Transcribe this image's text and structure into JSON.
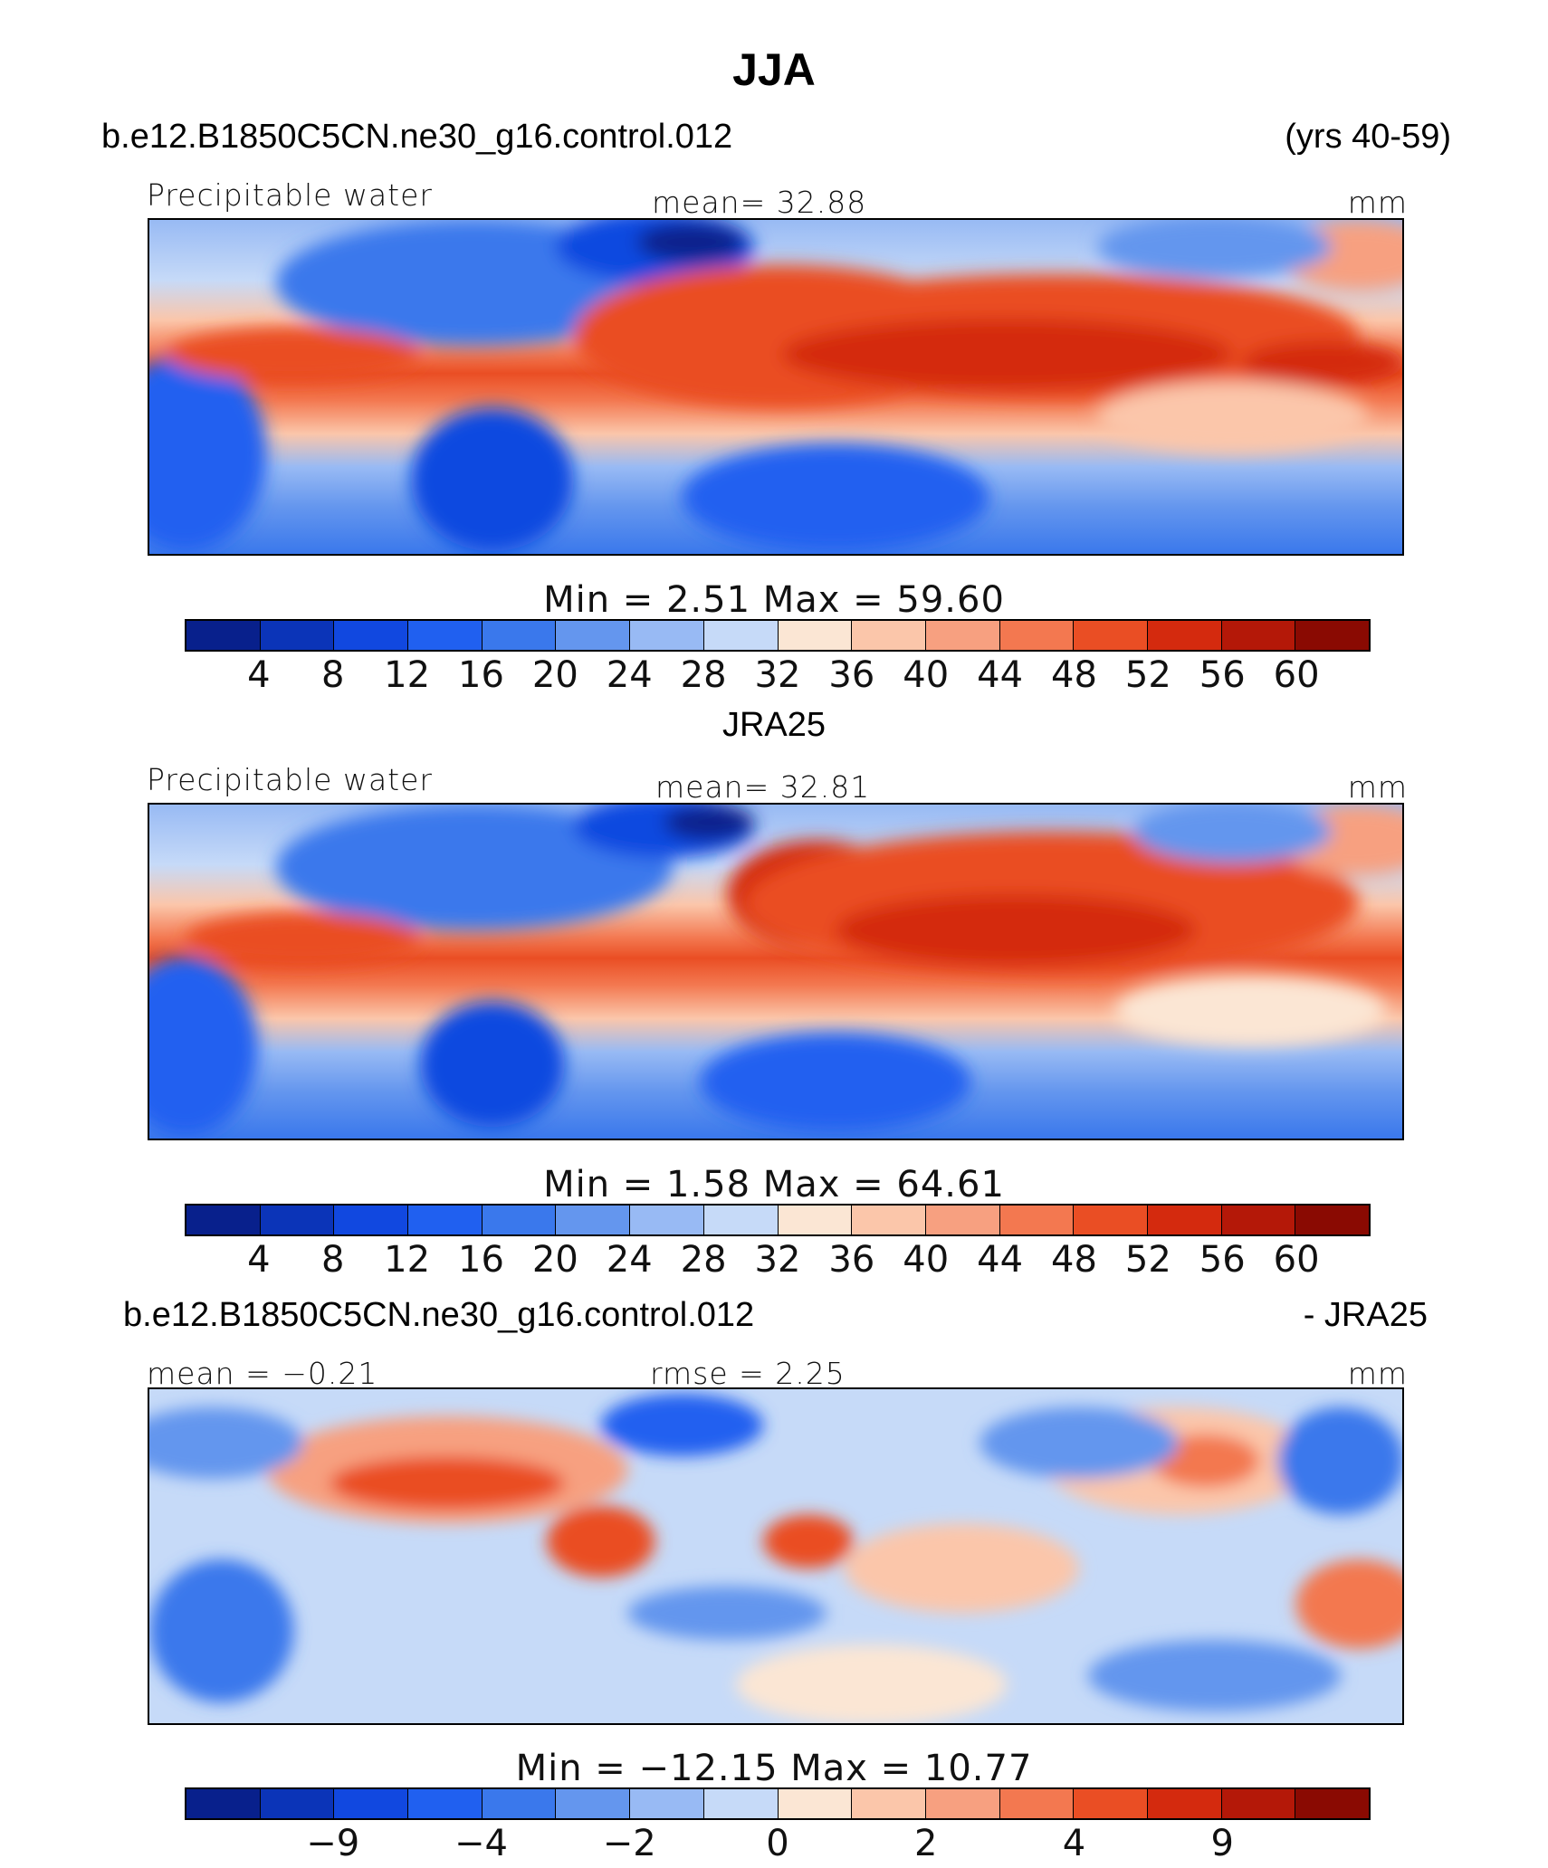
{
  "page_title": "JJA",
  "header_top": {
    "case": "b.e12.B1850C5CN.ne30_g16.control.012",
    "years": "(yrs 40-59)"
  },
  "panels": [
    {
      "id": "model",
      "variable": "Precipitable water",
      "stat": "mean=   32.88",
      "units": "mm",
      "minmax": "Min  =     2.51  Max  =    59.60",
      "cbar_ticks": [
        "4",
        "8",
        "12",
        "16",
        "20",
        "24",
        "28",
        "32",
        "36",
        "40",
        "44",
        "48",
        "52",
        "56",
        "60"
      ],
      "field_mean": 32.88,
      "field_min": 2.51,
      "field_max": 59.6
    },
    {
      "id": "obs",
      "label": "JRA25",
      "variable": "Precipitable water",
      "stat": "mean=   32.81",
      "units": "mm",
      "minmax": "Min  =     1.58  Max  =    64.61",
      "cbar_ticks": [
        "4",
        "8",
        "12",
        "16",
        "20",
        "24",
        "28",
        "32",
        "36",
        "40",
        "44",
        "48",
        "52",
        "56",
        "60"
      ],
      "field_mean": 32.81,
      "field_min": 1.58,
      "field_max": 64.61
    },
    {
      "id": "diff",
      "header_left": "b.e12.B1850C5CN.ne30_g16.control.012",
      "header_right": "- JRA25",
      "stat_left": "mean =  −0.21",
      "stat_mid": "rmse =     2.25",
      "units": "mm",
      "minmax": "Min  = −12.15  Max  =    10.77",
      "cbar_ticks": [
        "−9",
        "−4",
        "−2",
        "0",
        "2",
        "4",
        "9"
      ],
      "field_mean": -0.21,
      "field_rmse": 2.25,
      "field_min": -12.15,
      "field_max": 10.77
    }
  ],
  "colors": {
    "cbar_full": [
      "#08208c",
      "#0b34b8",
      "#1148e0",
      "#2060f0",
      "#3a78ec",
      "#6496ee",
      "#98baf4",
      "#c6daf8",
      "#fbe6d4",
      "#fbc6aa",
      "#f7a080",
      "#f37850",
      "#ea4e24",
      "#d42a0e",
      "#b41808",
      "#8a0a02"
    ]
  },
  "chart_data": [
    {
      "type": "heatmap",
      "title": "Precipitable water",
      "units": "mm",
      "levels": [
        4,
        8,
        12,
        16,
        20,
        24,
        28,
        32,
        36,
        40,
        44,
        48,
        52,
        56,
        60
      ],
      "mean": 32.88,
      "min": 2.51,
      "max": 59.6
    },
    {
      "type": "heatmap",
      "title": "JRA25",
      "units": "mm",
      "levels": [
        4,
        8,
        12,
        16,
        20,
        24,
        28,
        32,
        36,
        40,
        44,
        48,
        52,
        56,
        60
      ],
      "mean": 32.81,
      "min": 1.58,
      "max": 64.61
    },
    {
      "type": "heatmap",
      "title": "b.e12.B1850C5CN.ne30_g16.control.012 - JRA25",
      "units": "mm",
      "levels": [
        -9,
        -4,
        -2,
        0,
        2,
        4,
        9
      ],
      "mean": -0.21,
      "rmse": 2.25,
      "min": -12.15,
      "max": 10.77
    }
  ]
}
